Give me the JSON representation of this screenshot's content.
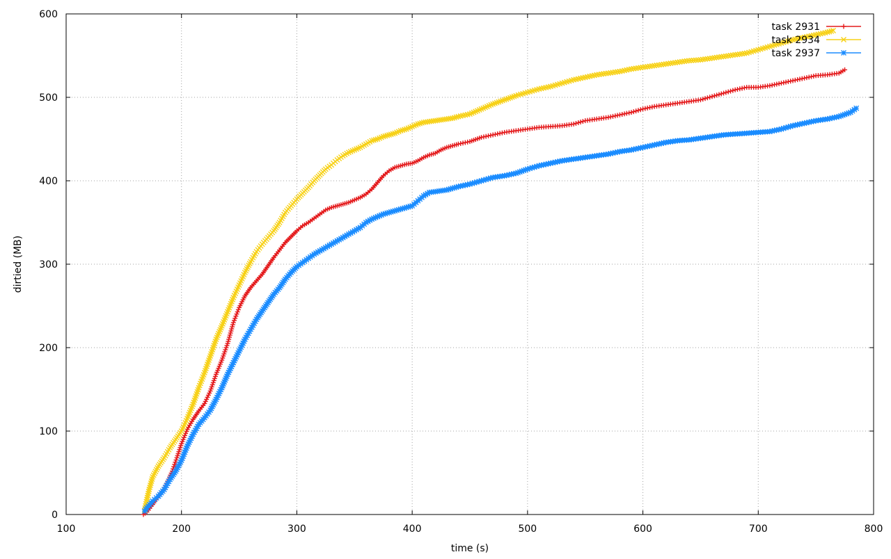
{
  "chart_data": {
    "type": "line",
    "title": "",
    "xlabel": "time (s)",
    "ylabel": "dirtied (MB)",
    "xlim": [
      100,
      800
    ],
    "ylim": [
      0,
      600
    ],
    "xticks": [
      100,
      200,
      300,
      400,
      500,
      600,
      700,
      800
    ],
    "yticks": [
      0,
      100,
      200,
      300,
      400,
      500,
      600
    ],
    "grid": true,
    "legend_position": "top-right",
    "series": [
      {
        "name": "task 2931",
        "color": "#e41a1c",
        "marker": "plus",
        "points": [
          [
            167,
            0
          ],
          [
            170,
            3
          ],
          [
            175,
            12
          ],
          [
            180,
            22
          ],
          [
            185,
            30
          ],
          [
            188,
            40
          ],
          [
            192,
            52
          ],
          [
            196,
            68
          ],
          [
            200,
            85
          ],
          [
            205,
            102
          ],
          [
            210,
            114
          ],
          [
            215,
            124
          ],
          [
            220,
            133
          ],
          [
            225,
            148
          ],
          [
            230,
            168
          ],
          [
            235,
            185
          ],
          [
            240,
            205
          ],
          [
            245,
            230
          ],
          [
            250,
            248
          ],
          [
            255,
            262
          ],
          [
            260,
            272
          ],
          [
            265,
            280
          ],
          [
            270,
            288
          ],
          [
            275,
            298
          ],
          [
            280,
            308
          ],
          [
            285,
            317
          ],
          [
            290,
            326
          ],
          [
            295,
            333
          ],
          [
            300,
            340
          ],
          [
            305,
            346
          ],
          [
            310,
            350
          ],
          [
            315,
            355
          ],
          [
            320,
            360
          ],
          [
            325,
            365
          ],
          [
            330,
            368
          ],
          [
            335,
            370
          ],
          [
            340,
            372
          ],
          [
            345,
            374
          ],
          [
            350,
            377
          ],
          [
            355,
            380
          ],
          [
            360,
            384
          ],
          [
            365,
            390
          ],
          [
            370,
            398
          ],
          [
            375,
            406
          ],
          [
            380,
            412
          ],
          [
            385,
            416
          ],
          [
            390,
            418
          ],
          [
            395,
            420
          ],
          [
            400,
            421
          ],
          [
            405,
            424
          ],
          [
            410,
            428
          ],
          [
            415,
            431
          ],
          [
            420,
            433
          ],
          [
            425,
            437
          ],
          [
            430,
            440
          ],
          [
            435,
            442
          ],
          [
            440,
            444
          ],
          [
            450,
            447
          ],
          [
            460,
            452
          ],
          [
            470,
            455
          ],
          [
            480,
            458
          ],
          [
            490,
            460
          ],
          [
            500,
            462
          ],
          [
            510,
            464
          ],
          [
            520,
            465
          ],
          [
            530,
            466
          ],
          [
            540,
            468
          ],
          [
            550,
            472
          ],
          [
            560,
            474
          ],
          [
            570,
            476
          ],
          [
            580,
            479
          ],
          [
            590,
            482
          ],
          [
            600,
            486
          ],
          [
            610,
            489
          ],
          [
            620,
            491
          ],
          [
            630,
            493
          ],
          [
            640,
            495
          ],
          [
            650,
            497
          ],
          [
            660,
            501
          ],
          [
            670,
            505
          ],
          [
            680,
            509
          ],
          [
            690,
            512
          ],
          [
            700,
            512
          ],
          [
            710,
            514
          ],
          [
            720,
            517
          ],
          [
            730,
            520
          ],
          [
            740,
            523
          ],
          [
            750,
            526
          ],
          [
            760,
            527
          ],
          [
            770,
            529
          ],
          [
            775,
            533
          ]
        ]
      },
      {
        "name": "task 2934",
        "color": "#f7d117",
        "marker": "cross",
        "points": [
          [
            168,
            5
          ],
          [
            170,
            18
          ],
          [
            172,
            30
          ],
          [
            175,
            45
          ],
          [
            180,
            58
          ],
          [
            185,
            68
          ],
          [
            190,
            80
          ],
          [
            195,
            90
          ],
          [
            200,
            100
          ],
          [
            205,
            115
          ],
          [
            210,
            132
          ],
          [
            215,
            152
          ],
          [
            220,
            170
          ],
          [
            225,
            190
          ],
          [
            230,
            210
          ],
          [
            235,
            226
          ],
          [
            240,
            243
          ],
          [
            245,
            260
          ],
          [
            250,
            275
          ],
          [
            255,
            290
          ],
          [
            260,
            303
          ],
          [
            265,
            315
          ],
          [
            270,
            324
          ],
          [
            275,
            332
          ],
          [
            280,
            340
          ],
          [
            285,
            350
          ],
          [
            290,
            362
          ],
          [
            295,
            370
          ],
          [
            300,
            378
          ],
          [
            305,
            385
          ],
          [
            310,
            392
          ],
          [
            315,
            400
          ],
          [
            320,
            407
          ],
          [
            325,
            414
          ],
          [
            330,
            419
          ],
          [
            335,
            425
          ],
          [
            340,
            430
          ],
          [
            345,
            434
          ],
          [
            350,
            437
          ],
          [
            355,
            440
          ],
          [
            360,
            444
          ],
          [
            365,
            448
          ],
          [
            370,
            450
          ],
          [
            375,
            453
          ],
          [
            380,
            455
          ],
          [
            385,
            457
          ],
          [
            390,
            460
          ],
          [
            395,
            462
          ],
          [
            400,
            465
          ],
          [
            405,
            468
          ],
          [
            410,
            470
          ],
          [
            415,
            471
          ],
          [
            420,
            472
          ],
          [
            425,
            473
          ],
          [
            430,
            474
          ],
          [
            435,
            475
          ],
          [
            440,
            477
          ],
          [
            450,
            480
          ],
          [
            460,
            486
          ],
          [
            470,
            492
          ],
          [
            480,
            497
          ],
          [
            490,
            502
          ],
          [
            500,
            506
          ],
          [
            510,
            510
          ],
          [
            520,
            513
          ],
          [
            530,
            517
          ],
          [
            540,
            521
          ],
          [
            550,
            524
          ],
          [
            560,
            527
          ],
          [
            570,
            529
          ],
          [
            580,
            531
          ],
          [
            590,
            534
          ],
          [
            600,
            536
          ],
          [
            610,
            538
          ],
          [
            620,
            540
          ],
          [
            630,
            542
          ],
          [
            640,
            544
          ],
          [
            650,
            545
          ],
          [
            660,
            547
          ],
          [
            670,
            549
          ],
          [
            680,
            551
          ],
          [
            690,
            553
          ],
          [
            700,
            557
          ],
          [
            710,
            561
          ],
          [
            720,
            565
          ],
          [
            730,
            569
          ],
          [
            740,
            572
          ],
          [
            750,
            575
          ],
          [
            760,
            578
          ],
          [
            765,
            580
          ]
        ]
      },
      {
        "name": "task 2937",
        "color": "#1a8cff",
        "marker": "star",
        "points": [
          [
            168,
            4
          ],
          [
            170,
            8
          ],
          [
            175,
            16
          ],
          [
            180,
            22
          ],
          [
            185,
            30
          ],
          [
            190,
            42
          ],
          [
            195,
            52
          ],
          [
            200,
            65
          ],
          [
            205,
            82
          ],
          [
            210,
            96
          ],
          [
            215,
            108
          ],
          [
            220,
            116
          ],
          [
            225,
            125
          ],
          [
            230,
            138
          ],
          [
            235,
            152
          ],
          [
            240,
            168
          ],
          [
            245,
            182
          ],
          [
            250,
            196
          ],
          [
            255,
            210
          ],
          [
            260,
            222
          ],
          [
            265,
            234
          ],
          [
            270,
            244
          ],
          [
            275,
            254
          ],
          [
            280,
            264
          ],
          [
            285,
            272
          ],
          [
            290,
            282
          ],
          [
            295,
            290
          ],
          [
            300,
            297
          ],
          [
            305,
            302
          ],
          [
            310,
            307
          ],
          [
            315,
            312
          ],
          [
            320,
            316
          ],
          [
            325,
            320
          ],
          [
            330,
            324
          ],
          [
            335,
            328
          ],
          [
            340,
            332
          ],
          [
            345,
            336
          ],
          [
            350,
            340
          ],
          [
            355,
            344
          ],
          [
            360,
            350
          ],
          [
            365,
            354
          ],
          [
            370,
            357
          ],
          [
            375,
            360
          ],
          [
            380,
            362
          ],
          [
            385,
            364
          ],
          [
            390,
            366
          ],
          [
            395,
            368
          ],
          [
            400,
            370
          ],
          [
            405,
            376
          ],
          [
            410,
            382
          ],
          [
            415,
            386
          ],
          [
            420,
            387
          ],
          [
            425,
            388
          ],
          [
            430,
            389
          ],
          [
            435,
            391
          ],
          [
            440,
            393
          ],
          [
            450,
            396
          ],
          [
            460,
            400
          ],
          [
            470,
            404
          ],
          [
            480,
            406
          ],
          [
            490,
            409
          ],
          [
            500,
            414
          ],
          [
            510,
            418
          ],
          [
            520,
            421
          ],
          [
            530,
            424
          ],
          [
            540,
            426
          ],
          [
            550,
            428
          ],
          [
            560,
            430
          ],
          [
            570,
            432
          ],
          [
            580,
            435
          ],
          [
            590,
            437
          ],
          [
            600,
            440
          ],
          [
            610,
            443
          ],
          [
            620,
            446
          ],
          [
            630,
            448
          ],
          [
            640,
            449
          ],
          [
            650,
            451
          ],
          [
            660,
            453
          ],
          [
            670,
            455
          ],
          [
            680,
            456
          ],
          [
            690,
            457
          ],
          [
            700,
            458
          ],
          [
            710,
            459
          ],
          [
            720,
            462
          ],
          [
            730,
            466
          ],
          [
            740,
            469
          ],
          [
            750,
            472
          ],
          [
            760,
            474
          ],
          [
            770,
            477
          ],
          [
            780,
            482
          ],
          [
            785,
            487
          ]
        ]
      }
    ]
  }
}
